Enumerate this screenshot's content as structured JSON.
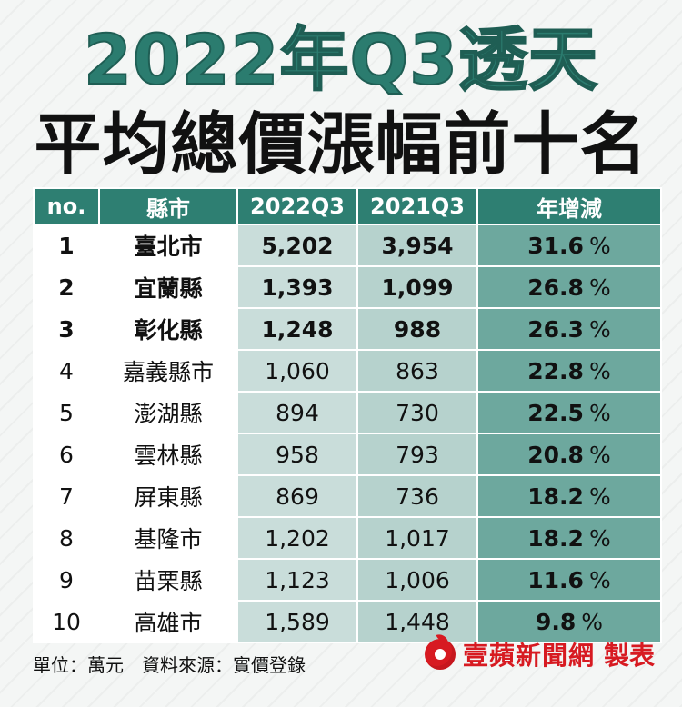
{
  "title": {
    "line1": "2022年Q3透天",
    "line2": "平均總價漲幅前十名"
  },
  "chart_data": {
    "type": "table",
    "columns": [
      "no.",
      "縣市",
      "2022Q3",
      "2021Q3",
      "年增減"
    ],
    "rows": [
      {
        "no": "1",
        "city": "臺北市",
        "q2022": "5,202",
        "q2021": "3,954",
        "yoy": "31.6",
        "bold": true
      },
      {
        "no": "2",
        "city": "宜蘭縣",
        "q2022": "1,393",
        "q2021": "1,099",
        "yoy": "26.8",
        "bold": true
      },
      {
        "no": "3",
        "city": "彰化縣",
        "q2022": "1,248",
        "q2021": "988",
        "yoy": "26.3",
        "bold": true
      },
      {
        "no": "4",
        "city": "嘉義縣市",
        "q2022": "1,060",
        "q2021": "863",
        "yoy": "22.8",
        "bold": false
      },
      {
        "no": "5",
        "city": "澎湖縣",
        "q2022": "894",
        "q2021": "730",
        "yoy": "22.5",
        "bold": false
      },
      {
        "no": "6",
        "city": "雲林縣",
        "q2022": "958",
        "q2021": "793",
        "yoy": "20.8",
        "bold": false
      },
      {
        "no": "7",
        "city": "屏東縣",
        "q2022": "869",
        "q2021": "736",
        "yoy": "18.2",
        "bold": false
      },
      {
        "no": "8",
        "city": "基隆市",
        "q2022": "1,202",
        "q2021": "1,017",
        "yoy": "18.2",
        "bold": false
      },
      {
        "no": "9",
        "city": "苗栗縣",
        "q2022": "1,123",
        "q2021": "1,006",
        "yoy": "11.6",
        "bold": false
      },
      {
        "no": "10",
        "city": "高雄市",
        "q2022": "1,589",
        "q2021": "1,448",
        "yoy": "9.8",
        "bold": false
      }
    ],
    "percent_sign": "%"
  },
  "footer": {
    "note": "單位：萬元　資料來源：實價登錄"
  },
  "brand": {
    "name": "壹蘋新聞網",
    "suffix": "製表",
    "icon": "apple-icon",
    "color": "#d71a21"
  },
  "colors": {
    "header": "#2e7f72",
    "col_2022": "#c9ddda",
    "col_2021": "#b6d2cd",
    "col_yoy": "#6da89e",
    "title_accent": "#2b7c6f"
  }
}
